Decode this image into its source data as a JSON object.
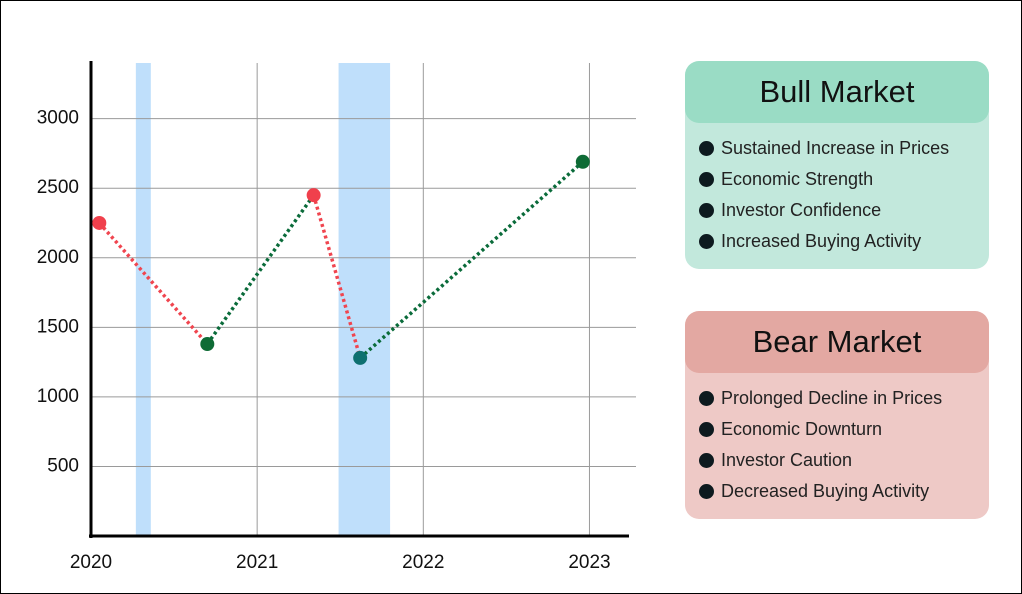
{
  "chart_data": {
    "type": "line",
    "x": [
      2020.05,
      2020.7,
      2021.34,
      2021.62,
      2022.96
    ],
    "values": [
      2250,
      1380,
      2450,
      1280,
      2690
    ],
    "point_colors": [
      "#f0404c",
      "#0e6b35",
      "#f0404c",
      "#0e7070",
      "#0e6b35"
    ],
    "segment_colors": [
      "#f0454f",
      "#0a6b3a",
      "#f0454f",
      "#0a6b3a"
    ],
    "shaded_regions": [
      {
        "x": [
          2020.27,
          2020.36
        ]
      },
      {
        "x": [
          2021.49,
          2021.8
        ]
      }
    ],
    "shade_color": "#bfdffb",
    "xlim": [
      2020,
      2023.25
    ],
    "xticks": [
      2020,
      2021,
      2022,
      2023
    ],
    "ylim": [
      0,
      3400
    ],
    "yticks": [
      500,
      1000,
      1500,
      2000,
      2500,
      3000
    ],
    "grid": true
  },
  "cards": [
    {
      "title": "Bull Market",
      "items": [
        "Sustained Increase in Prices",
        "Economic Strength",
        "Investor Confidence",
        "Increased Buying Activity"
      ]
    },
    {
      "title": "Bear Market",
      "items": [
        "Prolonged Decline in Prices",
        "Economic Downturn",
        "Investor Caution",
        "Decreased Buying Activity"
      ]
    }
  ]
}
